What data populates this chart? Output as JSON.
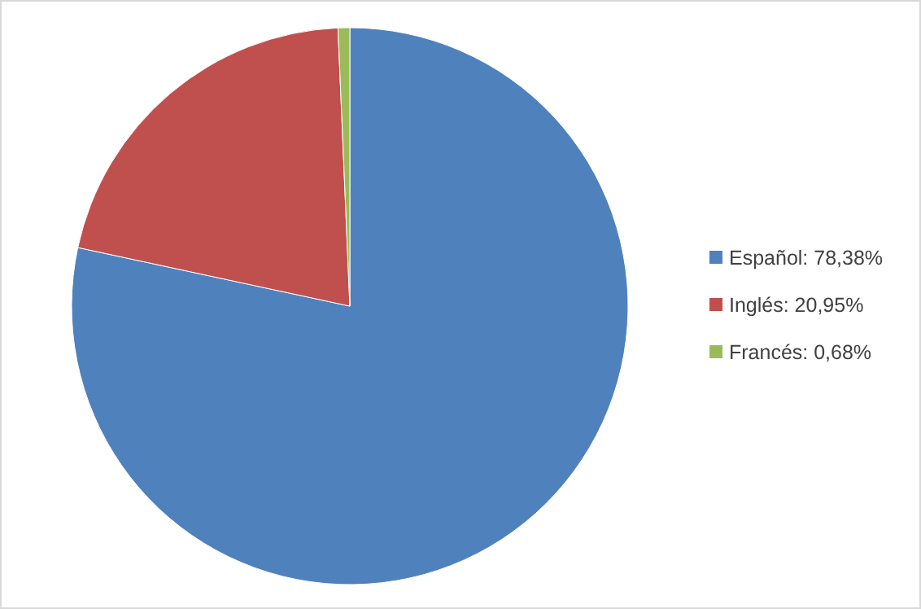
{
  "chart_data": {
    "type": "pie",
    "categories": [
      "Español: 78,38%",
      "Inglés: 20,95%",
      "Francés: 0,68%"
    ],
    "values": [
      78.38,
      20.95,
      0.68
    ],
    "colors": [
      "#4f81bd",
      "#c0504d",
      "#9bbb59"
    ],
    "legend": "right"
  }
}
